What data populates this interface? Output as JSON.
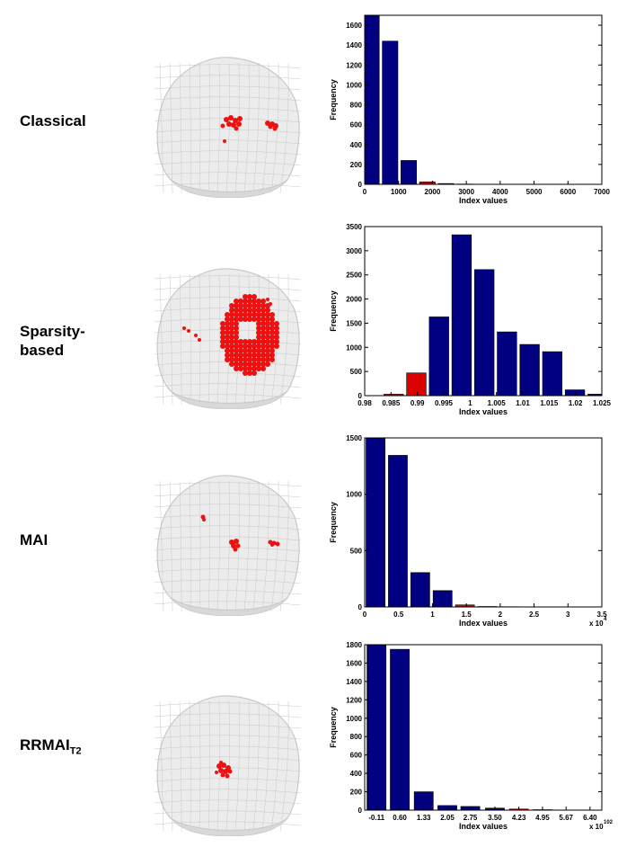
{
  "rows": [
    {
      "label_lines": [
        "Classical"
      ]
    },
    {
      "label_lines": [
        "Sparsity-",
        "based"
      ]
    },
    {
      "label_lines": [
        "MAI"
      ]
    },
    {
      "label_main": "RRMAI",
      "label_sub": "T2"
    }
  ],
  "colors": {
    "normal_bar": "#000080",
    "outlier_bar": "#dd0000",
    "brain_mesh": "#c8c8c8",
    "brain_fill": "#ececec",
    "activation": "#ee1111"
  },
  "chart_data": [
    {
      "type": "bar",
      "title": "",
      "xlabel": "Index values",
      "ylabel": "Frequency",
      "ylim": [
        0,
        1700
      ],
      "xlim": [
        0,
        7000
      ],
      "yticks": [
        "0",
        "200",
        "400",
        "600",
        "800",
        "1000",
        "1200",
        "1400",
        "1600"
      ],
      "xticks": [
        "0",
        "1000",
        "2000",
        "3000",
        "4000",
        "5000",
        "6000",
        "7000"
      ],
      "bars": [
        {
          "x": 200,
          "value": 1700,
          "outlier": false
        },
        {
          "x": 750,
          "value": 1440,
          "outlier": false
        },
        {
          "x": 1300,
          "value": 240,
          "outlier": false
        },
        {
          "x": 1850,
          "value": 25,
          "outlier": true
        },
        {
          "x": 2400,
          "value": 8,
          "outlier": true
        },
        {
          "x": 2950,
          "value": 3,
          "outlier": false
        },
        {
          "x": 3500,
          "value": 1,
          "outlier": false
        },
        {
          "x": 4050,
          "value": 1,
          "outlier": false
        },
        {
          "x": 4600,
          "value": 1,
          "outlier": false
        },
        {
          "x": 5150,
          "value": 1,
          "outlier": false
        }
      ],
      "bar_width": 460,
      "multiplier": ""
    },
    {
      "type": "bar",
      "title": "",
      "xlabel": "Index values",
      "ylabel": "Frequency",
      "ylim": [
        0,
        3500
      ],
      "xlim": [
        0.98,
        1.025
      ],
      "yticks": [
        "0",
        "500",
        "1000",
        "1500",
        "2000",
        "2500",
        "3000",
        "3500"
      ],
      "xticks": [
        "0.98",
        "0.985",
        "0.99",
        "0.995",
        "1",
        "1.005",
        "1.01",
        "1.015",
        "1.02",
        "1.025"
      ],
      "bars": [
        {
          "x": 0.9855,
          "value": 30,
          "outlier": true
        },
        {
          "x": 0.9898,
          "value": 470,
          "outlier": true
        },
        {
          "x": 0.9941,
          "value": 1630,
          "outlier": false
        },
        {
          "x": 0.9984,
          "value": 3330,
          "outlier": false
        },
        {
          "x": 1.0027,
          "value": 2610,
          "outlier": false
        },
        {
          "x": 1.007,
          "value": 1320,
          "outlier": false
        },
        {
          "x": 1.0113,
          "value": 1060,
          "outlier": false
        },
        {
          "x": 1.0156,
          "value": 910,
          "outlier": false
        },
        {
          "x": 1.0199,
          "value": 120,
          "outlier": false
        },
        {
          "x": 1.0242,
          "value": 30,
          "outlier": false
        }
      ],
      "bar_width": 0.0037,
      "multiplier": ""
    },
    {
      "type": "bar",
      "title": "",
      "xlabel": "Index values",
      "ylabel": "Frequency",
      "ylim": [
        0,
        1500
      ],
      "xlim": [
        0,
        3.5
      ],
      "yticks": [
        "0",
        "500",
        "1000",
        "1500"
      ],
      "xticks": [
        "0",
        "0.5",
        "1",
        "1.5",
        "2",
        "2.5",
        "3",
        "3.5"
      ],
      "bars": [
        {
          "x": 0.16,
          "value": 1500,
          "outlier": false
        },
        {
          "x": 0.49,
          "value": 1345,
          "outlier": false
        },
        {
          "x": 0.82,
          "value": 305,
          "outlier": false
        },
        {
          "x": 1.15,
          "value": 145,
          "outlier": false
        },
        {
          "x": 1.48,
          "value": 18,
          "outlier": true
        },
        {
          "x": 1.81,
          "value": 4,
          "outlier": false
        },
        {
          "x": 2.14,
          "value": 2,
          "outlier": false
        },
        {
          "x": 2.47,
          "value": 1,
          "outlier": false
        },
        {
          "x": 2.8,
          "value": 1,
          "outlier": false
        },
        {
          "x": 3.13,
          "value": 1,
          "outlier": false
        }
      ],
      "bar_width": 0.28,
      "multiplier": "x 10",
      "multiplier_exp": "4"
    },
    {
      "type": "bar",
      "title": "",
      "xlabel": "Index values",
      "ylabel": "Frequency",
      "ylim": [
        0,
        1800
      ],
      "xlim": [
        -0.47,
        6.76
      ],
      "yticks": [
        "0",
        "200",
        "400",
        "600",
        "800",
        "1000",
        "1200",
        "1400",
        "1600",
        "1800"
      ],
      "xticks": [
        "-0.11",
        "0.60",
        "1.33",
        "2.05",
        "2.75",
        "3.50",
        "4.23",
        "4.95",
        "5.67",
        "6.40"
      ],
      "xtick_values": [
        -0.11,
        0.6,
        1.33,
        2.05,
        2.75,
        3.5,
        4.23,
        4.95,
        5.67,
        6.4
      ],
      "bars": [
        {
          "x": -0.11,
          "value": 1800,
          "outlier": false
        },
        {
          "x": 0.6,
          "value": 1750,
          "outlier": false
        },
        {
          "x": 1.33,
          "value": 200,
          "outlier": false
        },
        {
          "x": 2.05,
          "value": 50,
          "outlier": false
        },
        {
          "x": 2.75,
          "value": 40,
          "outlier": false
        },
        {
          "x": 3.5,
          "value": 22,
          "outlier": false
        },
        {
          "x": 4.23,
          "value": 12,
          "outlier": true
        },
        {
          "x": 4.95,
          "value": 5,
          "outlier": true
        },
        {
          "x": 5.67,
          "value": 2,
          "outlier": false
        },
        {
          "x": 6.4,
          "value": 1,
          "outlier": false
        }
      ],
      "bar_width": 0.58,
      "multiplier": "x 10",
      "multiplier_exp": "102"
    }
  ]
}
